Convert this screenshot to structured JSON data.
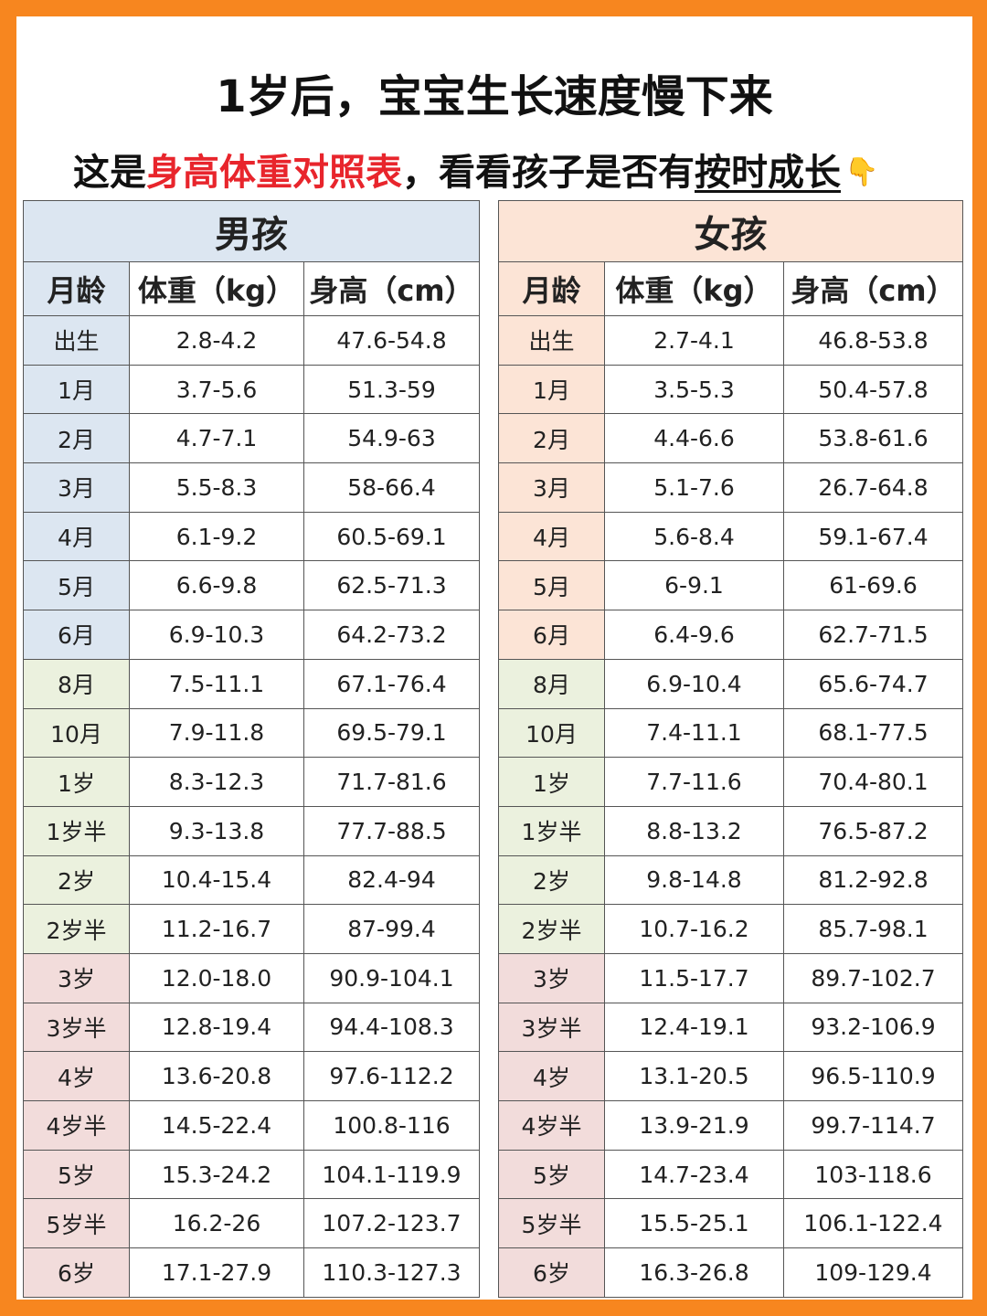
{
  "title": "1岁后，宝宝生长速度慢下来",
  "subtitle": {
    "part1": "这是",
    "highlight": "身高体重对照表",
    "part2": "，看看孩子是否有",
    "underlined": "按时成长",
    "emoji": "👇"
  },
  "colors": {
    "border": "#f7861f",
    "highlight": "#e8252c",
    "boy_header": "#dce6f1",
    "girl_header": "#fce4d6",
    "green_band": "#ebf1de",
    "pink_band": "#f2dcdb"
  },
  "boy": {
    "title": "男孩",
    "columns": [
      "月龄",
      "体重（kg）",
      "身高（cm）"
    ],
    "rows": [
      {
        "age": "出生",
        "weight": "2.8-4.2",
        "height": "47.6-54.8",
        "band": 1
      },
      {
        "age": "1月",
        "weight": "3.7-5.6",
        "height": "51.3-59",
        "band": 1
      },
      {
        "age": "2月",
        "weight": "4.7-7.1",
        "height": "54.9-63",
        "band": 1
      },
      {
        "age": "3月",
        "weight": "5.5-8.3",
        "height": "58-66.4",
        "band": 1
      },
      {
        "age": "4月",
        "weight": "6.1-9.2",
        "height": "60.5-69.1",
        "band": 1
      },
      {
        "age": "5月",
        "weight": "6.6-9.8",
        "height": "62.5-71.3",
        "band": 1
      },
      {
        "age": "6月",
        "weight": "6.9-10.3",
        "height": "64.2-73.2",
        "band": 1
      },
      {
        "age": "8月",
        "weight": "7.5-11.1",
        "height": "67.1-76.4",
        "band": 2
      },
      {
        "age": "10月",
        "weight": "7.9-11.8",
        "height": "69.5-79.1",
        "band": 2
      },
      {
        "age": "1岁",
        "weight": "8.3-12.3",
        "height": "71.7-81.6",
        "band": 2
      },
      {
        "age": "1岁半",
        "weight": "9.3-13.8",
        "height": "77.7-88.5",
        "band": 2
      },
      {
        "age": "2岁",
        "weight": "10.4-15.4",
        "height": "82.4-94",
        "band": 2
      },
      {
        "age": "2岁半",
        "weight": "11.2-16.7",
        "height": "87-99.4",
        "band": 2
      },
      {
        "age": "3岁",
        "weight": "12.0-18.0",
        "height": "90.9-104.1",
        "band": 3
      },
      {
        "age": "3岁半",
        "weight": "12.8-19.4",
        "height": "94.4-108.3",
        "band": 3
      },
      {
        "age": "4岁",
        "weight": "13.6-20.8",
        "height": "97.6-112.2",
        "band": 3
      },
      {
        "age": "4岁半",
        "weight": "14.5-22.4",
        "height": "100.8-116",
        "band": 3
      },
      {
        "age": "5岁",
        "weight": "15.3-24.2",
        "height": "104.1-119.9",
        "band": 3
      },
      {
        "age": "5岁半",
        "weight": "16.2-26",
        "height": "107.2-123.7",
        "band": 3
      },
      {
        "age": "6岁",
        "weight": "17.1-27.9",
        "height": "110.3-127.3",
        "band": 3
      }
    ]
  },
  "girl": {
    "title": "女孩",
    "columns": [
      "月龄",
      "体重（kg）",
      "身高（cm）"
    ],
    "rows": [
      {
        "age": "出生",
        "weight": "2.7-4.1",
        "height": "46.8-53.8",
        "band": 1
      },
      {
        "age": "1月",
        "weight": "3.5-5.3",
        "height": "50.4-57.8",
        "band": 1
      },
      {
        "age": "2月",
        "weight": "4.4-6.6",
        "height": "53.8-61.6",
        "band": 1
      },
      {
        "age": "3月",
        "weight": "5.1-7.6",
        "height": "26.7-64.8",
        "band": 1
      },
      {
        "age": "4月",
        "weight": "5.6-8.4",
        "height": "59.1-67.4",
        "band": 1
      },
      {
        "age": "5月",
        "weight": "6-9.1",
        "height": "61-69.6",
        "band": 1
      },
      {
        "age": "6月",
        "weight": "6.4-9.6",
        "height": "62.7-71.5",
        "band": 1
      },
      {
        "age": "8月",
        "weight": "6.9-10.4",
        "height": "65.6-74.7",
        "band": 2
      },
      {
        "age": "10月",
        "weight": "7.4-11.1",
        "height": "68.1-77.5",
        "band": 2
      },
      {
        "age": "1岁",
        "weight": "7.7-11.6",
        "height": "70.4-80.1",
        "band": 2
      },
      {
        "age": "1岁半",
        "weight": "8.8-13.2",
        "height": "76.5-87.2",
        "band": 2
      },
      {
        "age": "2岁",
        "weight": "9.8-14.8",
        "height": "81.2-92.8",
        "band": 2
      },
      {
        "age": "2岁半",
        "weight": "10.7-16.2",
        "height": "85.7-98.1",
        "band": 2
      },
      {
        "age": "3岁",
        "weight": "11.5-17.7",
        "height": "89.7-102.7",
        "band": 3
      },
      {
        "age": "3岁半",
        "weight": "12.4-19.1",
        "height": "93.2-106.9",
        "band": 3
      },
      {
        "age": "4岁",
        "weight": "13.1-20.5",
        "height": "96.5-110.9",
        "band": 3
      },
      {
        "age": "4岁半",
        "weight": "13.9-21.9",
        "height": "99.7-114.7",
        "band": 3
      },
      {
        "age": "5岁",
        "weight": "14.7-23.4",
        "height": "103-118.6",
        "band": 3
      },
      {
        "age": "5岁半",
        "weight": "15.5-25.1",
        "height": "106.1-122.4",
        "band": 3
      },
      {
        "age": "6岁",
        "weight": "16.3-26.8",
        "height": "109-129.4",
        "band": 3
      }
    ]
  }
}
